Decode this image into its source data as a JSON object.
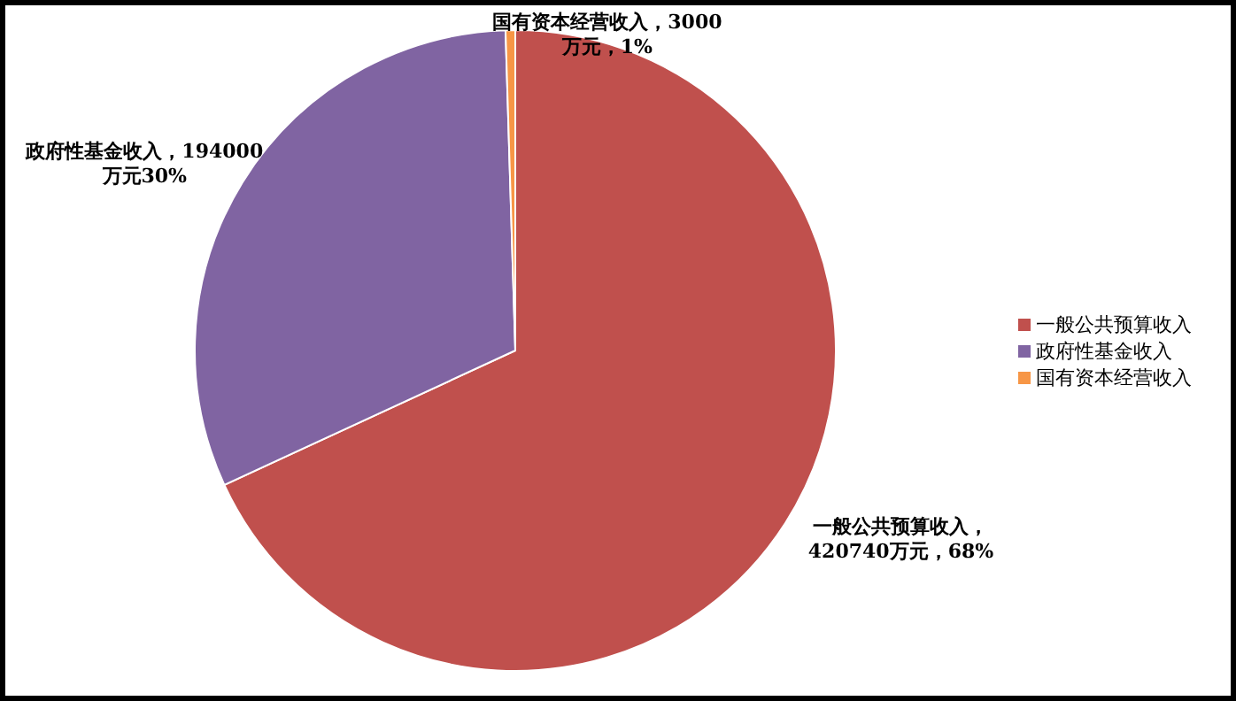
{
  "chart_data": {
    "type": "pie",
    "categories": [
      "一般公共预算收入",
      "政府性基金收入",
      "国有资本经营收入"
    ],
    "values": [
      420740,
      194000,
      3000
    ],
    "colors": [
      "#c0504d",
      "#8064a2",
      "#f79646"
    ],
    "value_labels": [
      "一般公共预算收入，420740万元，68%",
      "政府性基金收入，194000万元30%",
      "国有资本经营收入，3000万元，1%"
    ],
    "legend": "right"
  }
}
